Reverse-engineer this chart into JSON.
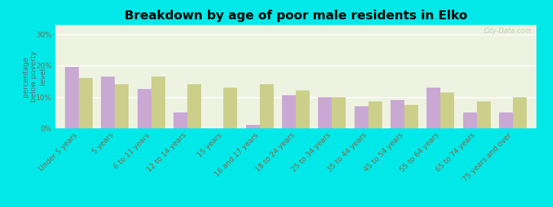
{
  "title": "Breakdown by age of poor male residents in Elko",
  "ylabel": "percentage\nbelow poverty\nlevel",
  "categories": [
    "Under 5 years",
    "5 years",
    "6 to 11 years",
    "12 to 14 years",
    "15 years",
    "16 and 17 years",
    "18 to 24 years",
    "25 to 34 years",
    "35 to 44 years",
    "45 to 54 years",
    "55 to 64 years",
    "65 to 74 years",
    "75 years and over"
  ],
  "elko_values": [
    19.5,
    16.5,
    12.5,
    5.0,
    0.0,
    1.0,
    10.5,
    10.0,
    7.0,
    9.0,
    13.0,
    5.0,
    5.0
  ],
  "nevada_values": [
    16.0,
    14.0,
    16.5,
    14.0,
    13.0,
    14.0,
    12.0,
    10.0,
    8.5,
    7.5,
    11.5,
    8.5,
    10.0
  ],
  "elko_color": "#c9a8d4",
  "nevada_color": "#cccf8a",
  "plot_bg_color": "#eef2e0",
  "outer_background": "#00e8e8",
  "yticks": [
    0,
    10,
    20,
    30
  ],
  "ylim": [
    0,
    33
  ],
  "title_fontsize": 13,
  "label_fontsize": 7.5,
  "ylabel_fontsize": 7.5,
  "tick_color": "#886644",
  "watermark": "City-Data.com",
  "watermark_color": "#bbbbbb"
}
